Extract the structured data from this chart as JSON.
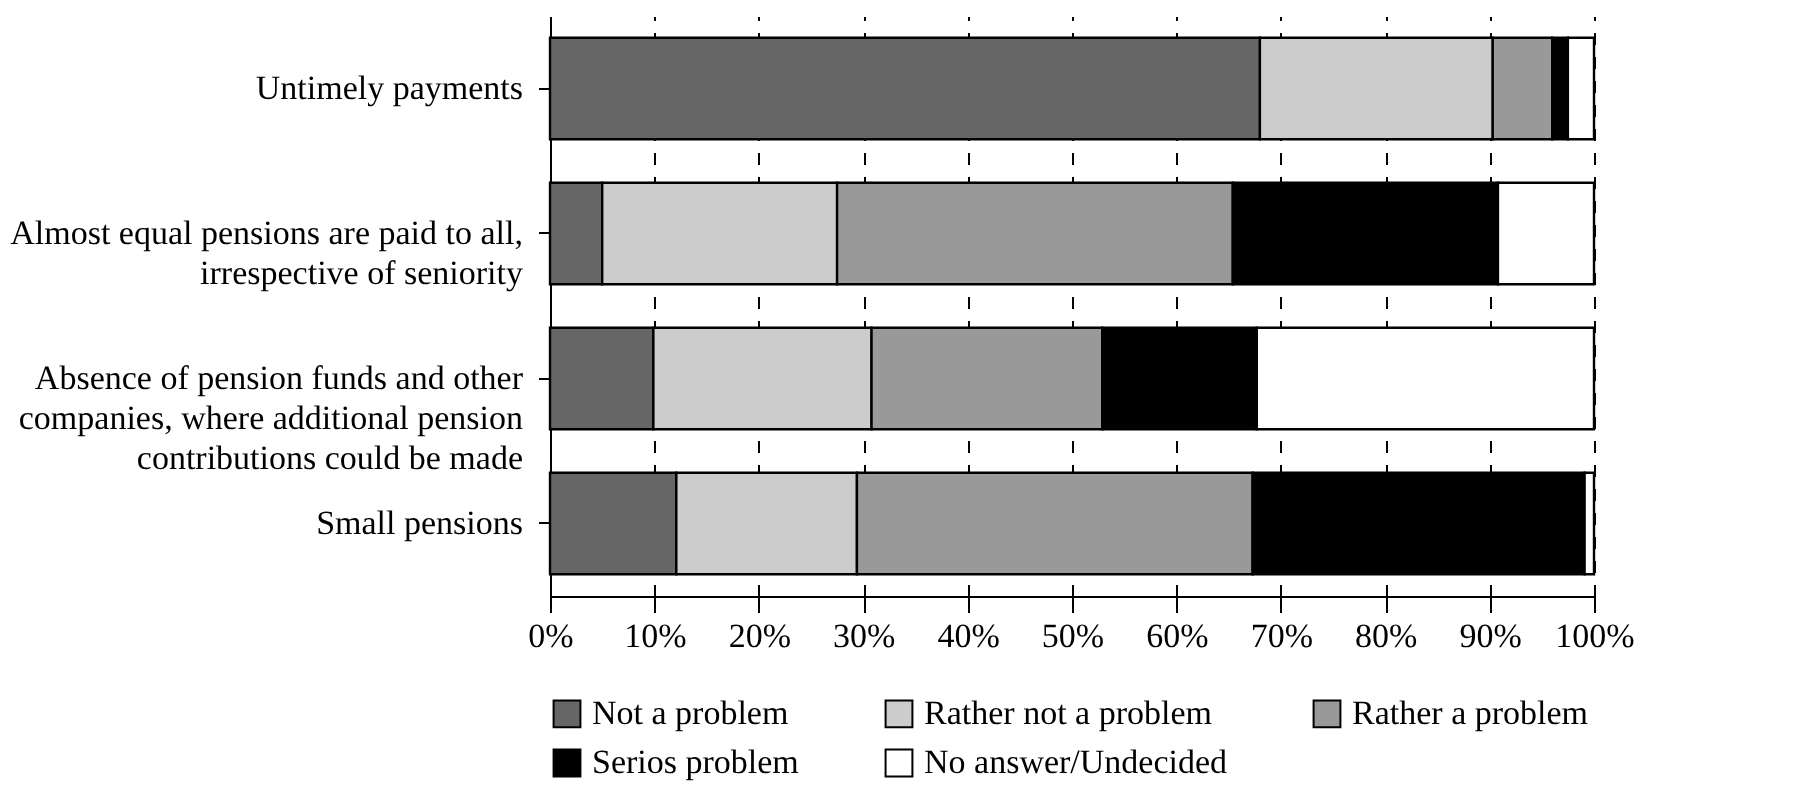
{
  "chart_data": {
    "type": "bar",
    "orientation": "horizontal",
    "stacked": true,
    "categories": [
      "Untimely payments",
      "Almost equal pensions are paid to all, irrespective of seniority",
      "Absence of pension funds and other companies, where additional pension contributions could be made",
      "Small pensions"
    ],
    "series": [
      {
        "name": "Not a problem",
        "color": "#666666",
        "values": [
          68,
          5,
          9.9,
          12.1
        ]
      },
      {
        "name": "Rather not a problem",
        "color": "#cccccc",
        "values": [
          22.3,
          22.5,
          20.9,
          17.3
        ]
      },
      {
        "name": "Rather a problem",
        "color": "#999999",
        "values": [
          5.7,
          37.9,
          22.1,
          37.9
        ]
      },
      {
        "name": "Serios problem",
        "color": "#000000",
        "values": [
          1.5,
          25.4,
          14.8,
          31.8
        ]
      },
      {
        "name": "No answer/Undecided",
        "color": "#ffffff",
        "values": [
          2.5,
          9.2,
          32.3,
          0.9
        ]
      }
    ],
    "xlim": [
      0,
      100
    ],
    "xticks": [
      {
        "value": 0,
        "label": "0%"
      },
      {
        "value": 10,
        "label": "10%"
      },
      {
        "value": 20,
        "label": "20%"
      },
      {
        "value": 30,
        "label": "30%"
      },
      {
        "value": 40,
        "label": "40%"
      },
      {
        "value": 50,
        "label": "50%"
      },
      {
        "value": 60,
        "label": "60%"
      },
      {
        "value": 70,
        "label": "70%"
      },
      {
        "value": 80,
        "label": "80%"
      },
      {
        "value": 90,
        "label": "90%"
      },
      {
        "value": 100,
        "label": "100%"
      }
    ],
    "grid": "x",
    "legend": "bottom"
  }
}
